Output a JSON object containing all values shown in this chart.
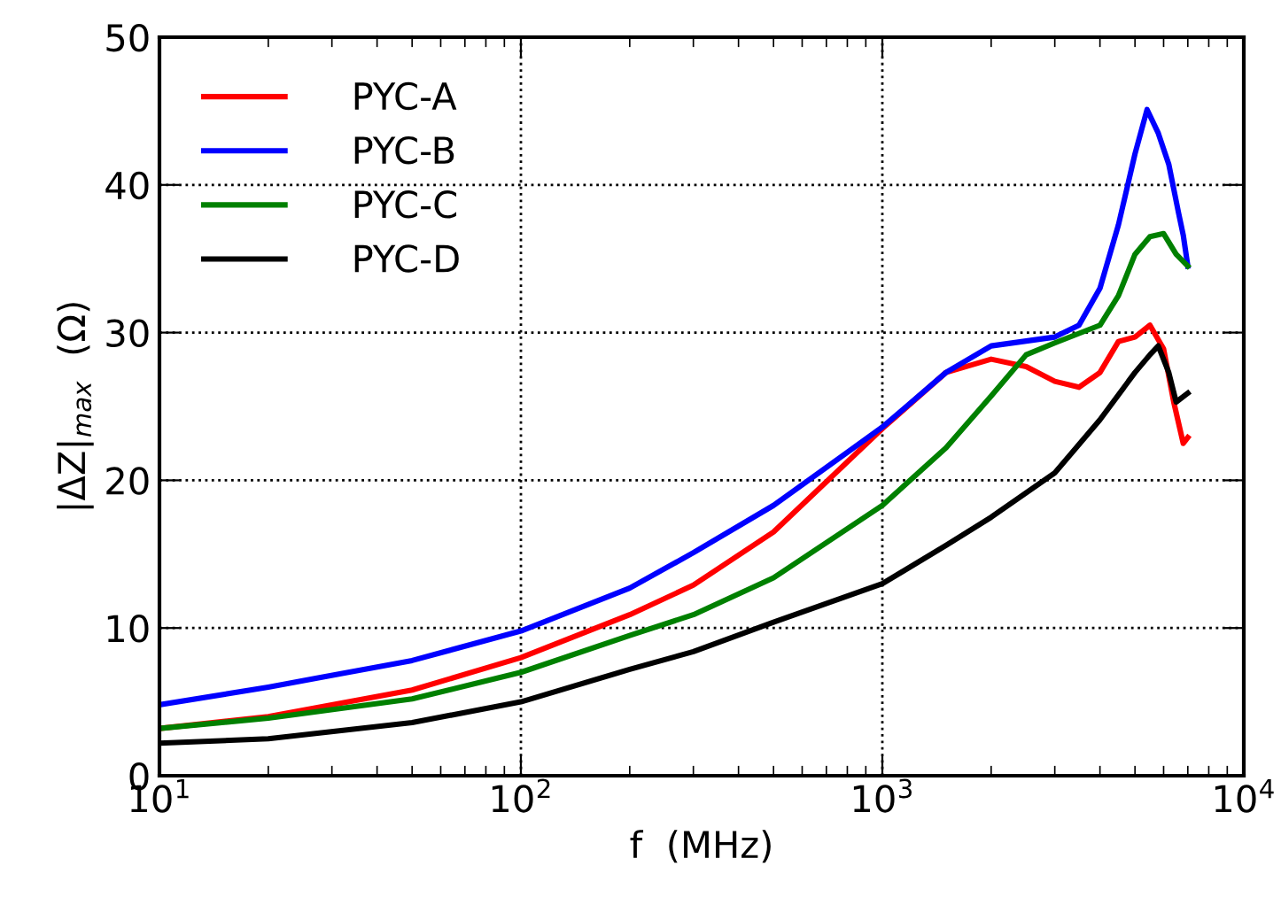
{
  "chart_data": {
    "type": "line",
    "xlabel": "f  (MHz)",
    "ylabel": "|ΔZ|$_{max}$  (Ω)",
    "log": "x",
    "grid": true,
    "legend": "top left",
    "marker": "none",
    "line_style": "solid",
    "xlim": [
      10,
      10000
    ],
    "xticks": [
      {
        "value": 10,
        "label": "10$^{1}$"
      },
      {
        "value": 100,
        "label": "10$^{2}$"
      },
      {
        "value": 1000,
        "label": "10$^{3}$"
      },
      {
        "value": 10000,
        "label": "10$^{4}$"
      }
    ],
    "ylim": [
      0,
      50
    ],
    "yticks": [
      0,
      10,
      20,
      30,
      40,
      50
    ],
    "series": [
      {
        "name": "PYC-A",
        "color": "#ff0000",
        "x": [
          10,
          20,
          50,
          100,
          200,
          300,
          500,
          1000,
          1500,
          2000,
          2500,
          3000,
          3500,
          4000,
          4500,
          5000,
          5500,
          6000,
          6400,
          6800,
          7000
        ],
        "values": [
          3.2,
          4.0,
          5.8,
          8.0,
          10.9,
          12.9,
          16.5,
          23.5,
          27.3,
          28.2,
          27.7,
          26.7,
          26.3,
          27.3,
          29.4,
          29.7,
          30.5,
          28.9,
          25.3,
          22.5,
          22.9
        ]
      },
      {
        "name": "PYC-B",
        "color": "#0000ff",
        "x": [
          10,
          20,
          50,
          100,
          200,
          300,
          500,
          1000,
          1500,
          2000,
          3000,
          3500,
          4000,
          4500,
          5000,
          5400,
          5800,
          6200,
          6600,
          6800,
          7000
        ],
        "values": [
          4.8,
          6.0,
          7.8,
          9.8,
          12.7,
          15.1,
          18.3,
          23.6,
          27.3,
          29.1,
          29.7,
          30.5,
          33.0,
          37.3,
          42.1,
          45.1,
          43.5,
          41.4,
          38.1,
          36.6,
          34.5
        ]
      },
      {
        "name": "PYC-C",
        "color": "#008000",
        "x": [
          10,
          20,
          50,
          100,
          200,
          300,
          500,
          1000,
          1500,
          2000,
          2500,
          3000,
          4000,
          4500,
          5000,
          5500,
          6000,
          6500,
          7000
        ],
        "values": [
          3.2,
          3.9,
          5.2,
          7.0,
          9.5,
          10.9,
          13.4,
          18.3,
          22.2,
          25.7,
          28.5,
          29.3,
          30.5,
          32.5,
          35.3,
          36.5,
          36.7,
          35.3,
          34.5
        ]
      },
      {
        "name": "PYC-D",
        "color": "#000000",
        "x": [
          10,
          20,
          50,
          100,
          200,
          300,
          500,
          1000,
          1500,
          2000,
          3000,
          4000,
          5000,
          5500,
          5800,
          6200,
          6500,
          7000
        ],
        "values": [
          2.2,
          2.5,
          3.6,
          5.0,
          7.2,
          8.4,
          10.4,
          13.0,
          15.6,
          17.5,
          20.5,
          24.1,
          27.3,
          28.5,
          29.1,
          27.3,
          25.3,
          25.9
        ]
      }
    ]
  }
}
